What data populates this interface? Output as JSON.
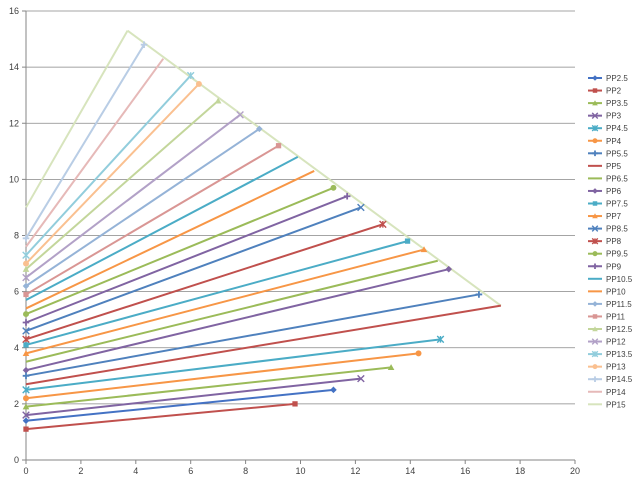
{
  "chart_data": {
    "type": "scatter",
    "title": "",
    "xlabel": "",
    "ylabel": "",
    "xlim": [
      0,
      20
    ],
    "ylim": [
      0,
      16
    ],
    "x_ticks": [
      "0",
      "2",
      "4",
      "6",
      "8",
      "10",
      "12",
      "14",
      "16",
      "18",
      "20"
    ],
    "y_ticks": [
      "0",
      "2",
      "4",
      "6",
      "8",
      "10",
      "12",
      "14",
      "16"
    ],
    "grid": "horizontal",
    "legend_position": "right",
    "series": [
      {
        "name": "PP2.5",
        "color": "#4472C4",
        "marker": "diamond",
        "points": [
          [
            0,
            1.4
          ],
          [
            11.2,
            2.5
          ]
        ]
      },
      {
        "name": "PP2",
        "color": "#C0504D",
        "marker": "square",
        "points": [
          [
            0,
            1.1
          ],
          [
            9.8,
            2.0
          ]
        ]
      },
      {
        "name": "PP3.5",
        "color": "#9BBB59",
        "marker": "triangle",
        "points": [
          [
            0,
            1.9
          ],
          [
            13.3,
            3.3
          ]
        ]
      },
      {
        "name": "PP3",
        "color": "#8064A2",
        "marker": "x",
        "points": [
          [
            0,
            1.6
          ],
          [
            12.2,
            2.9
          ]
        ]
      },
      {
        "name": "PP4.5",
        "color": "#4BACC6",
        "marker": "star",
        "points": [
          [
            0,
            2.5
          ],
          [
            15.1,
            4.3
          ]
        ]
      },
      {
        "name": "PP4",
        "color": "#F79646",
        "marker": "circle",
        "points": [
          [
            0,
            2.2
          ],
          [
            14.3,
            3.8
          ]
        ]
      },
      {
        "name": "PP5.5",
        "color": "#4F81BD",
        "marker": "plus",
        "points": [
          [
            0,
            3.0
          ],
          [
            16.5,
            5.9
          ]
        ]
      },
      {
        "name": "PP5",
        "color": "#C0504D",
        "marker": "none",
        "points": [
          [
            0,
            2.7
          ],
          [
            17.3,
            5.5
          ]
        ]
      },
      {
        "name": "PP6.5",
        "color": "#9BBB59",
        "marker": "none",
        "points": [
          [
            0,
            3.5
          ],
          [
            15.0,
            7.1
          ]
        ]
      },
      {
        "name": "PP6",
        "color": "#8064A2",
        "marker": "diamond",
        "points": [
          [
            0,
            3.2
          ],
          [
            15.4,
            6.8
          ]
        ]
      },
      {
        "name": "PP7.5",
        "color": "#4BACC6",
        "marker": "square",
        "points": [
          [
            0,
            4.1
          ],
          [
            13.9,
            7.8
          ]
        ]
      },
      {
        "name": "PP7",
        "color": "#F79646",
        "marker": "triangle",
        "points": [
          [
            0,
            3.8
          ],
          [
            14.5,
            7.5
          ]
        ]
      },
      {
        "name": "PP8.5",
        "color": "#4F81BD",
        "marker": "x",
        "points": [
          [
            0,
            4.6
          ],
          [
            12.2,
            9.0
          ]
        ]
      },
      {
        "name": "PP8",
        "color": "#C0504D",
        "marker": "star",
        "points": [
          [
            0,
            4.3
          ],
          [
            13.0,
            8.4
          ]
        ]
      },
      {
        "name": "PP9.5",
        "color": "#9BBB59",
        "marker": "circle",
        "points": [
          [
            0,
            5.2
          ],
          [
            11.2,
            9.7
          ]
        ]
      },
      {
        "name": "PP9",
        "color": "#8064A2",
        "marker": "plus",
        "points": [
          [
            0,
            4.9
          ],
          [
            11.7,
            9.4
          ]
        ]
      },
      {
        "name": "PP10.5",
        "color": "#4BACC6",
        "marker": "none",
        "points": [
          [
            0,
            5.7
          ],
          [
            9.9,
            10.8
          ]
        ]
      },
      {
        "name": "PP10",
        "color": "#F79646",
        "marker": "none",
        "points": [
          [
            0,
            5.4
          ],
          [
            10.5,
            10.3
          ]
        ]
      },
      {
        "name": "PP11.5",
        "color": "#95B3D7",
        "marker": "diamond",
        "points": [
          [
            0,
            6.2
          ],
          [
            8.5,
            11.8
          ]
        ]
      },
      {
        "name": "PP11",
        "color": "#D99694",
        "marker": "square",
        "points": [
          [
            0,
            5.9
          ],
          [
            9.2,
            11.2
          ]
        ]
      },
      {
        "name": "PP12.5",
        "color": "#C3D69B",
        "marker": "triangle",
        "points": [
          [
            0,
            6.8
          ],
          [
            7.0,
            12.8
          ]
        ]
      },
      {
        "name": "PP12",
        "color": "#B2A1C7",
        "marker": "x",
        "points": [
          [
            0,
            6.5
          ],
          [
            7.8,
            12.3
          ]
        ]
      },
      {
        "name": "PP13.5",
        "color": "#92CDDC",
        "marker": "star",
        "points": [
          [
            0,
            7.3
          ],
          [
            6.0,
            13.7
          ]
        ]
      },
      {
        "name": "PP13",
        "color": "#FAC090",
        "marker": "circle",
        "points": [
          [
            0,
            7.0
          ],
          [
            6.3,
            13.4
          ]
        ]
      },
      {
        "name": "PP14.5",
        "color": "#B9CDE5",
        "marker": "plus",
        "points": [
          [
            0,
            7.9
          ],
          [
            4.3,
            14.8
          ]
        ]
      },
      {
        "name": "PP14",
        "color": "#E6B9B8",
        "marker": "none",
        "points": [
          [
            0,
            7.6
          ],
          [
            5.0,
            14.3
          ]
        ]
      },
      {
        "name": "PP15",
        "color": "#D7E4BD",
        "marker": "none",
        "points": [
          [
            0,
            9.0
          ],
          [
            3.7,
            15.3
          ]
        ]
      }
    ],
    "envelope": {
      "color": "#D7E4BD",
      "points": [
        [
          3.7,
          15.3
        ],
        [
          17.3,
          5.5
        ]
      ]
    }
  }
}
